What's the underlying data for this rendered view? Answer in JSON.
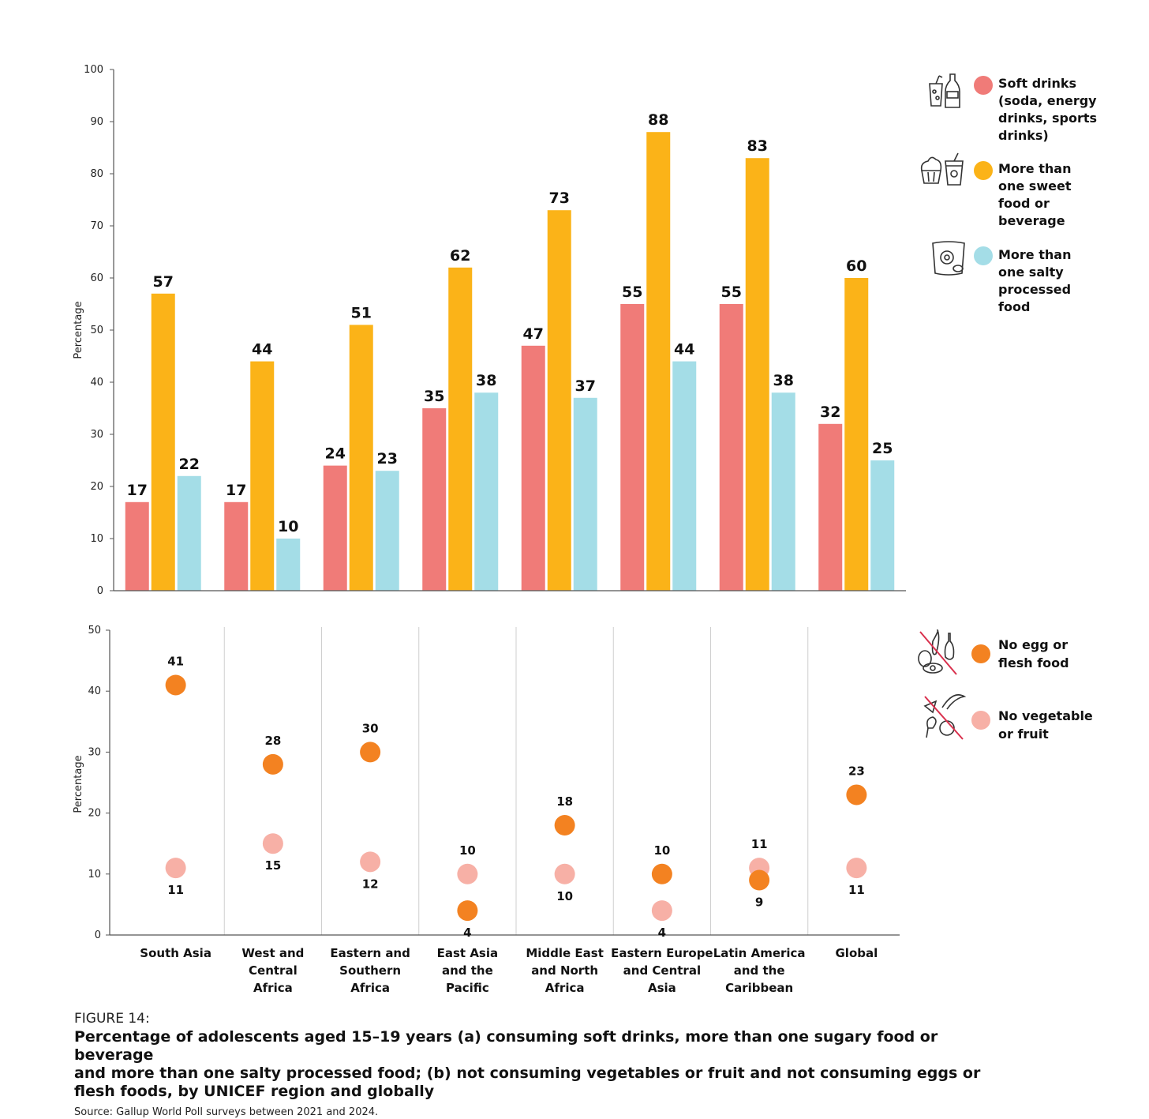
{
  "chart_data": [
    {
      "type": "bar",
      "ylabel": "Percentage",
      "ylim": [
        0,
        100
      ],
      "yticks": [
        0,
        10,
        20,
        30,
        40,
        50,
        60,
        70,
        80,
        90,
        100
      ],
      "grid": false,
      "legend_position": "right",
      "categories": [
        "South Asia",
        "West and Central Africa",
        "Eastern and Southern Africa",
        "East Asia and the Pacific",
        "Middle East and North Africa",
        "Eastern Europe and Central Asia",
        "Latin America and the Caribbean",
        "Global"
      ],
      "series": [
        {
          "name": "Soft drinks (soda, energy drinks, sports drinks)",
          "color": "#f07b78",
          "icon": "soda-bottle-icon",
          "values": [
            17,
            17,
            24,
            35,
            47,
            55,
            55,
            32
          ]
        },
        {
          "name": "More than one sweet food or beverage",
          "color": "#fbb318",
          "icon": "cupcake-drink-icon",
          "values": [
            57,
            44,
            51,
            62,
            73,
            88,
            83,
            60
          ]
        },
        {
          "name": "More than one salty processed food",
          "color": "#a4dde7",
          "icon": "chips-bag-icon",
          "values": [
            22,
            10,
            23,
            38,
            37,
            44,
            38,
            25
          ]
        }
      ]
    },
    {
      "type": "scatter",
      "ylabel": "Percentage",
      "ylim": [
        0,
        50
      ],
      "yticks": [
        0,
        10,
        20,
        30,
        40,
        50
      ],
      "grid": false,
      "legend_position": "right",
      "categories": [
        "South Asia",
        "West and Central Africa",
        "Eastern and Southern Africa",
        "East Asia and the Pacific",
        "Middle East and North Africa",
        "Eastern Europe and Central Asia",
        "Latin America and the Caribbean",
        "Global"
      ],
      "category_lines": [
        [
          "South Asia"
        ],
        [
          "West and",
          "Central",
          "Africa"
        ],
        [
          "Eastern and",
          "Southern",
          "Africa"
        ],
        [
          "East Asia",
          "and the",
          "Pacific"
        ],
        [
          "Middle East",
          "and North",
          "Africa"
        ],
        [
          "Eastern Europe",
          "and Central",
          "Asia"
        ],
        [
          "Latin America",
          "and the",
          "Caribbean"
        ],
        [
          "Global"
        ]
      ],
      "series": [
        {
          "name": "No egg or flesh food",
          "legend_lines": [
            "No egg or",
            "flesh food"
          ],
          "color": "#f38221",
          "icon": "no-egg-flesh-icon",
          "values": [
            41,
            28,
            30,
            4,
            18,
            10,
            9,
            23
          ]
        },
        {
          "name": "No vegetable or fruit",
          "legend_lines": [
            "No vegetable",
            "or fruit"
          ],
          "color": "#f7b0a6",
          "icon": "no-vegetable-fruit-icon",
          "values": [
            11,
            15,
            12,
            10,
            10,
            4,
            11,
            11
          ]
        }
      ]
    }
  ],
  "legend": {
    "top": [
      {
        "lines": [
          "Soft drinks",
          "(soda, energy",
          "drinks, sports",
          "drinks)"
        ]
      },
      {
        "lines": [
          "More than",
          "one sweet",
          "food or",
          "beverage"
        ]
      },
      {
        "lines": [
          "More than",
          "one salty",
          "processed",
          "food"
        ]
      }
    ]
  },
  "caption": {
    "figure_number": "FIGURE 14:",
    "title_lines": [
      "Percentage of adolescents aged 15–19 years (a) consuming soft drinks, more than one sugary food or beverage",
      "and more than one salty processed food; (b) not consuming vegetables or fruit and not consuming eggs or",
      "flesh foods, by UNICEF region and globally"
    ],
    "source": "Source: Gallup World Poll surveys between 2021 and 2024."
  }
}
